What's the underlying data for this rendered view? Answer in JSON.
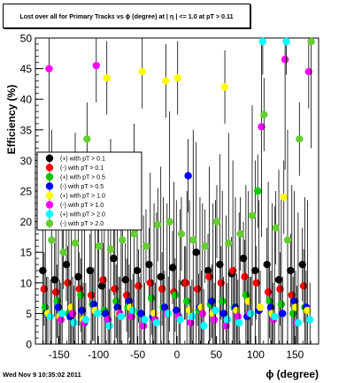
{
  "chart_data": {
    "type": "scatter",
    "title": "Lost over all for Primary Tracks vs ϕ (degree) at | η | <= 1.0 at pT > 0.11",
    "xlabel": "ϕ (degree)",
    "ylabel": "Efficiency (%)",
    "xlim": [
      -180,
      180
    ],
    "ylim": [
      0,
      50
    ],
    "xticks": [
      -150,
      -100,
      -50,
      0,
      50,
      100,
      150
    ],
    "yticks": [
      0,
      5,
      10,
      15,
      20,
      25,
      30,
      35,
      40,
      45,
      50
    ],
    "grid": false,
    "legend_position": "middle-left",
    "series": [
      {
        "name": "(+) with pT > 0.1",
        "color": "#000000",
        "x": [
          -165,
          -150,
          -135,
          -120,
          -105,
          -90,
          -75,
          -60,
          -45,
          -30,
          -15,
          0,
          15,
          30,
          45,
          60,
          75,
          90,
          105,
          120,
          135,
          150,
          165
        ],
        "y": [
          12,
          10.5,
          13,
          11,
          12,
          9.5,
          14,
          10.5,
          12,
          13,
          11,
          12.5,
          10,
          15,
          12,
          13,
          11.5,
          14,
          12,
          13,
          10.5,
          12,
          13
        ]
      },
      {
        "name": "(-) with pT > 0.1",
        "color": "#ff0000",
        "x": [
          -165,
          -150,
          -135,
          -120,
          -105,
          -90,
          -75,
          -60,
          -45,
          -30,
          -15,
          0,
          15,
          30,
          45,
          60,
          75,
          90,
          105,
          120,
          135,
          150,
          165
        ],
        "y": [
          9,
          8.5,
          10,
          9,
          8,
          10.5,
          9,
          8,
          9.5,
          10,
          9,
          8.5,
          10,
          9,
          11,
          10,
          12,
          11,
          10,
          8.5,
          9,
          8,
          9.5
        ]
      },
      {
        "name": "(+) with pT > 0.5",
        "color": "#00cc00",
        "x": [
          -165,
          -150,
          -135,
          -120,
          -105,
          -90,
          -75,
          -60,
          -45,
          -30,
          -15,
          0,
          15,
          30,
          45,
          60,
          75,
          90,
          105,
          120,
          135,
          150,
          165
        ],
        "y": [
          6,
          7,
          5,
          8,
          6.5,
          5.5,
          7,
          6,
          5,
          7.5,
          6,
          8,
          7,
          5.5,
          6.5,
          7,
          6,
          8,
          25,
          7,
          6.5,
          5,
          6
        ]
      },
      {
        "name": "(-) with pT > 0.5",
        "color": "#0000ff",
        "x": [
          -165,
          -150,
          -135,
          -120,
          -105,
          -90,
          -75,
          -60,
          -45,
          -30,
          -15,
          0,
          15,
          30,
          45,
          60,
          75,
          90,
          105,
          120,
          135,
          150,
          165
        ],
        "y": [
          5,
          6,
          4.5,
          5.5,
          6.5,
          5,
          6,
          7,
          5,
          4.5,
          6,
          5.5,
          27.5,
          6,
          7,
          5,
          6,
          4.5,
          5.5,
          6,
          5,
          7,
          6
        ]
      },
      {
        "name": "(+) with pT > 1.0",
        "color": "#ffff00",
        "x": [
          -165,
          -150,
          -135,
          -120,
          -105,
          -90,
          -75,
          -60,
          -45,
          -30,
          -15,
          0,
          15,
          30,
          45,
          60,
          75,
          90,
          105,
          120,
          135,
          150,
          165
        ],
        "y": [
          5,
          4.5,
          6,
          4,
          5.5,
          43.5,
          5,
          6,
          44.5,
          5,
          43,
          43.5,
          5.5,
          6,
          5,
          42,
          5.5,
          7,
          6,
          5,
          24,
          6,
          5.5
        ]
      },
      {
        "name": "(-) with pT > 1.0",
        "color": "#ff00ff",
        "x": [
          -165,
          -150,
          -135,
          -120,
          -105,
          -90,
          -75,
          -60,
          -45,
          -30,
          -15,
          0,
          15,
          30,
          45,
          60,
          75,
          90,
          105,
          120,
          135,
          150,
          165
        ],
        "y": [
          45,
          4,
          5,
          3.5,
          45.5,
          4,
          5,
          4.5,
          3,
          4,
          5,
          4.5,
          3.5,
          5,
          4,
          3,
          4.5,
          5,
          35.5,
          4,
          46.5,
          3.5,
          44.5
        ]
      },
      {
        "name": "(+) with pT > 2.0",
        "color": "#00ffff",
        "x": [
          -165,
          -150,
          -135,
          -120,
          -105,
          -90,
          -75,
          -60,
          -45,
          -30,
          -15,
          0,
          15,
          30,
          45,
          60,
          75,
          90,
          105,
          120,
          135,
          150,
          165
        ],
        "y": [
          4.5,
          5,
          3.5,
          4,
          5,
          3,
          4.5,
          5.5,
          4,
          3.5,
          5,
          4,
          4.5,
          3,
          5.5,
          4,
          3.5,
          5,
          50,
          4.5,
          50,
          3.5,
          4
        ]
      },
      {
        "name": "(-) with pT > 2.0",
        "color": "#66cc33",
        "x": [
          -165,
          -150,
          -135,
          -120,
          -105,
          -90,
          -75,
          -60,
          -45,
          -30,
          -15,
          0,
          15,
          30,
          45,
          60,
          75,
          90,
          105,
          120,
          135,
          150,
          165
        ],
        "y": [
          17,
          15,
          16.5,
          33.5,
          16,
          15.5,
          17,
          18,
          16,
          19.5,
          20,
          18,
          17,
          16,
          20,
          16.5,
          18,
          21,
          37.5,
          19,
          17,
          33.5,
          50
        ]
      }
    ]
  },
  "timestamp": "Wed Nov  9 10:35:02 2011"
}
